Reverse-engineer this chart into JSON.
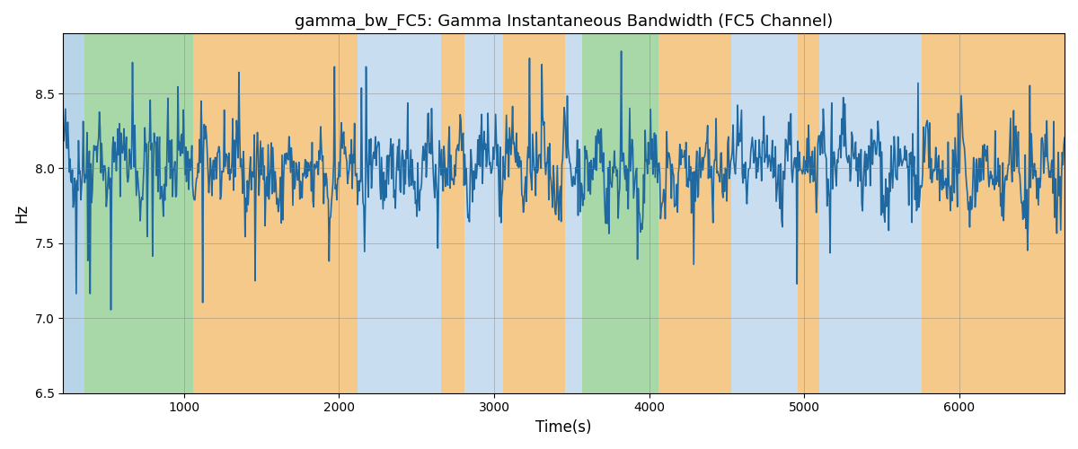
{
  "title": "gamma_bw_FC5: Gamma Instantaneous Bandwidth (FC5 Channel)",
  "xlabel": "Time(s)",
  "ylabel": "Hz",
  "xlim": [
    220,
    6680
  ],
  "ylim": [
    6.5,
    8.9
  ],
  "yticks": [
    6.5,
    7.0,
    7.5,
    8.0,
    8.5
  ],
  "xticks": [
    1000,
    2000,
    3000,
    4000,
    5000,
    6000
  ],
  "figsize": [
    12,
    5
  ],
  "dpi": 100,
  "line_color": "#2068a0",
  "line_width": 1.2,
  "bg_regions": [
    {
      "xstart": 220,
      "xend": 360,
      "color": "#b8d4e8"
    },
    {
      "xstart": 360,
      "xend": 1060,
      "color": "#a8d8a8"
    },
    {
      "xstart": 1060,
      "xend": 2120,
      "color": "#f5c98a"
    },
    {
      "xstart": 2120,
      "xend": 2660,
      "color": "#c8ddf0"
    },
    {
      "xstart": 2660,
      "xend": 2810,
      "color": "#f5c98a"
    },
    {
      "xstart": 2810,
      "xend": 3060,
      "color": "#c8ddf0"
    },
    {
      "xstart": 3060,
      "xend": 3460,
      "color": "#f5c98a"
    },
    {
      "xstart": 3460,
      "xend": 3570,
      "color": "#c8ddf0"
    },
    {
      "xstart": 3570,
      "xend": 4060,
      "color": "#a8d8a8"
    },
    {
      "xstart": 4060,
      "xend": 4530,
      "color": "#f5c98a"
    },
    {
      "xstart": 4530,
      "xend": 4960,
      "color": "#c8ddf0"
    },
    {
      "xstart": 4960,
      "xend": 5100,
      "color": "#f5c98a"
    },
    {
      "xstart": 5100,
      "xend": 5760,
      "color": "#c8ddf0"
    },
    {
      "xstart": 5760,
      "xend": 5880,
      "color": "#f5c98a"
    },
    {
      "xstart": 5880,
      "xend": 6680,
      "color": "#f5c98a"
    }
  ],
  "seed": 42,
  "n_points": 1300,
  "x_start": 220,
  "x_end": 6680
}
